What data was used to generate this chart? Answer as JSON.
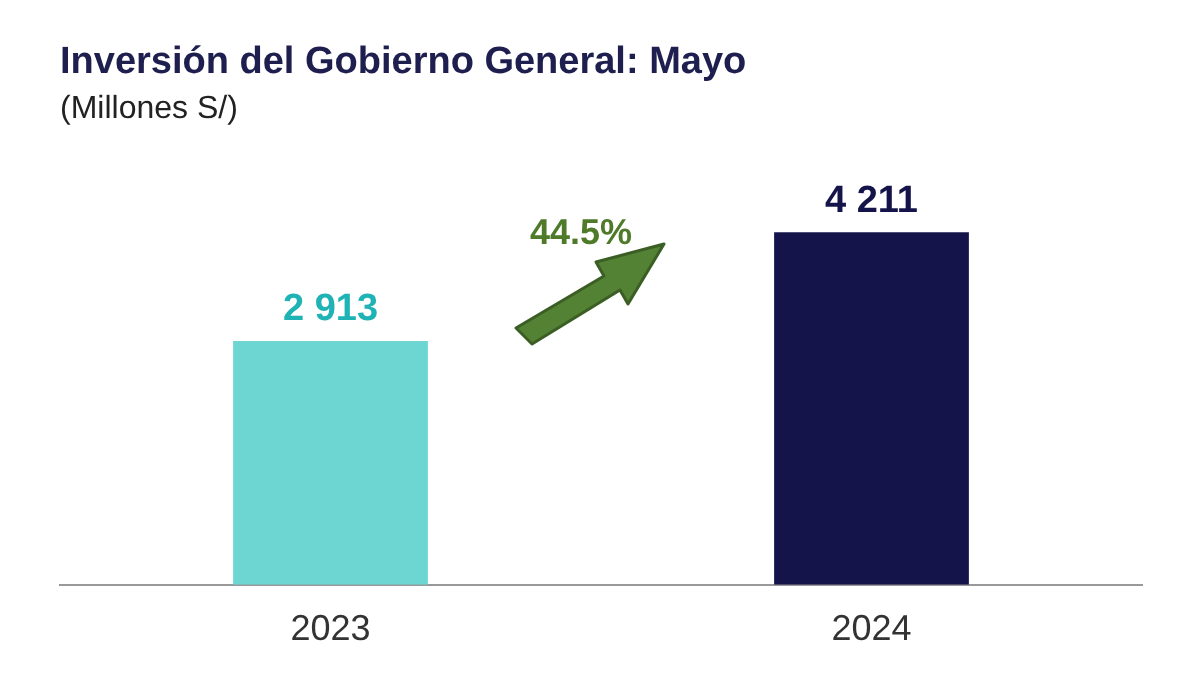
{
  "chart_data": {
    "type": "bar",
    "title": "Inversión del Gobierno General: Mayo",
    "subtitle": "(Millones S/)",
    "categories": [
      "2023",
      "2024"
    ],
    "values": [
      2913,
      4211
    ],
    "colors": [
      "#6dd6d3",
      "#14144a"
    ],
    "value_labels": [
      "2 913",
      "4 211"
    ],
    "annotations": [
      "44.5%"
    ],
    "grid": false,
    "legend": false,
    "tick_labels": "x"
  }
}
